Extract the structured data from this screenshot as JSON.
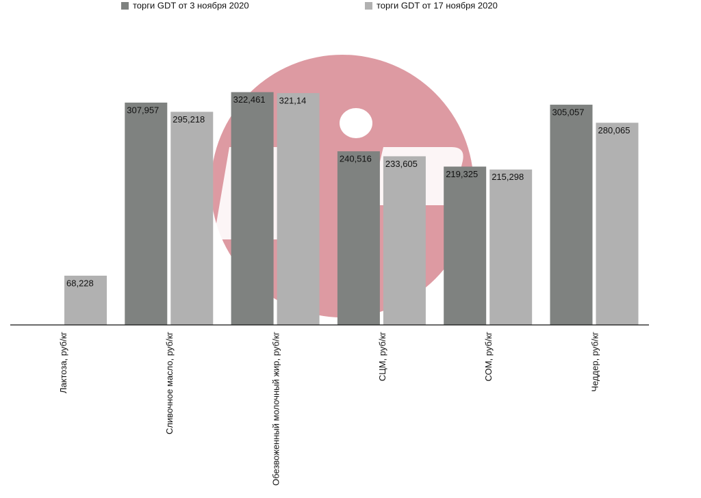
{
  "chart_data": {
    "type": "bar",
    "categories": [
      "Лактоза, руб/кг",
      "Сливочное масло, руб/кг",
      "Обезвоженный молочный жир, руб/кг",
      "СЦМ, руб/кг",
      "СОМ, руб/кг",
      "Чеддер, руб/кг"
    ],
    "series": [
      {
        "name": "торги GDT от 3 ноября 2020",
        "color": "#7f8280",
        "values": [
          null,
          307.957,
          322.461,
          240.516,
          219.325,
          305.057
        ],
        "value_labels": [
          null,
          "307,957",
          "322,461",
          "240,516",
          "219,325",
          "305,057"
        ]
      },
      {
        "name": "торги GDT от 17 ноября 2020",
        "color": "#b1b1b1",
        "values": [
          68.228,
          295.218,
          321.14,
          233.605,
          215.298,
          280.065
        ],
        "value_labels": [
          "68,228",
          "295,218",
          "321,14",
          "233,605",
          "215,298",
          "280,065"
        ]
      }
    ],
    "ylim": [
      0,
      325
    ],
    "legend": "top"
  }
}
